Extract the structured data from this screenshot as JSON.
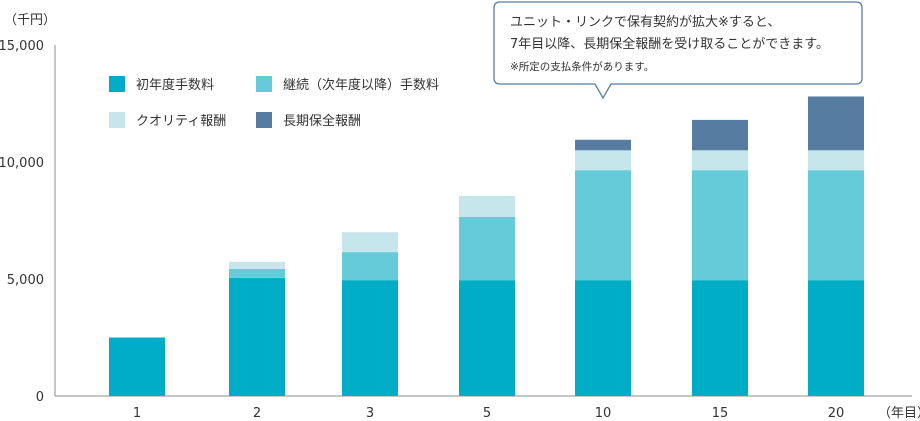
{
  "chart_data": {
    "type": "bar",
    "stacked": true,
    "y_unit_label": "（千円）",
    "x_unit_label": "（年目）",
    "ylim": [
      0,
      15000
    ],
    "yticks": [
      "0",
      "5,000",
      "10,000",
      "15,000"
    ],
    "ytick_values": [
      0,
      5000,
      10000,
      15000
    ],
    "grid": false,
    "legend_position": "top-left",
    "categories": [
      "1",
      "2",
      "3",
      "5",
      "10",
      "15",
      "20"
    ],
    "series": [
      {
        "name": "初年度手数料",
        "color": "#00adc7",
        "values": [
          2500,
          5050,
          4950,
          4950,
          4950,
          4950,
          4950
        ]
      },
      {
        "name": "継続（次年度以降）手数料",
        "color": "#66cbd9",
        "values": [
          0,
          380,
          1200,
          2700,
          4700,
          4700,
          4700
        ]
      },
      {
        "name": "クオリティ報酬",
        "color": "#c5e6eb",
        "values": [
          0,
          300,
          850,
          900,
          850,
          850,
          850
        ]
      },
      {
        "name": "長期保全報酬",
        "color": "#577ca2",
        "values": [
          0,
          0,
          0,
          0,
          450,
          1300,
          2300
        ]
      }
    ],
    "legend_order": [
      0,
      1,
      2,
      3
    ],
    "callout": {
      "line1": "ユニット・リンクで保有契約が拡大※すると、",
      "line2": "7年目以降、長期保全報酬を受け取ることができます。",
      "note": "※所定の支払条件があります。"
    }
  }
}
